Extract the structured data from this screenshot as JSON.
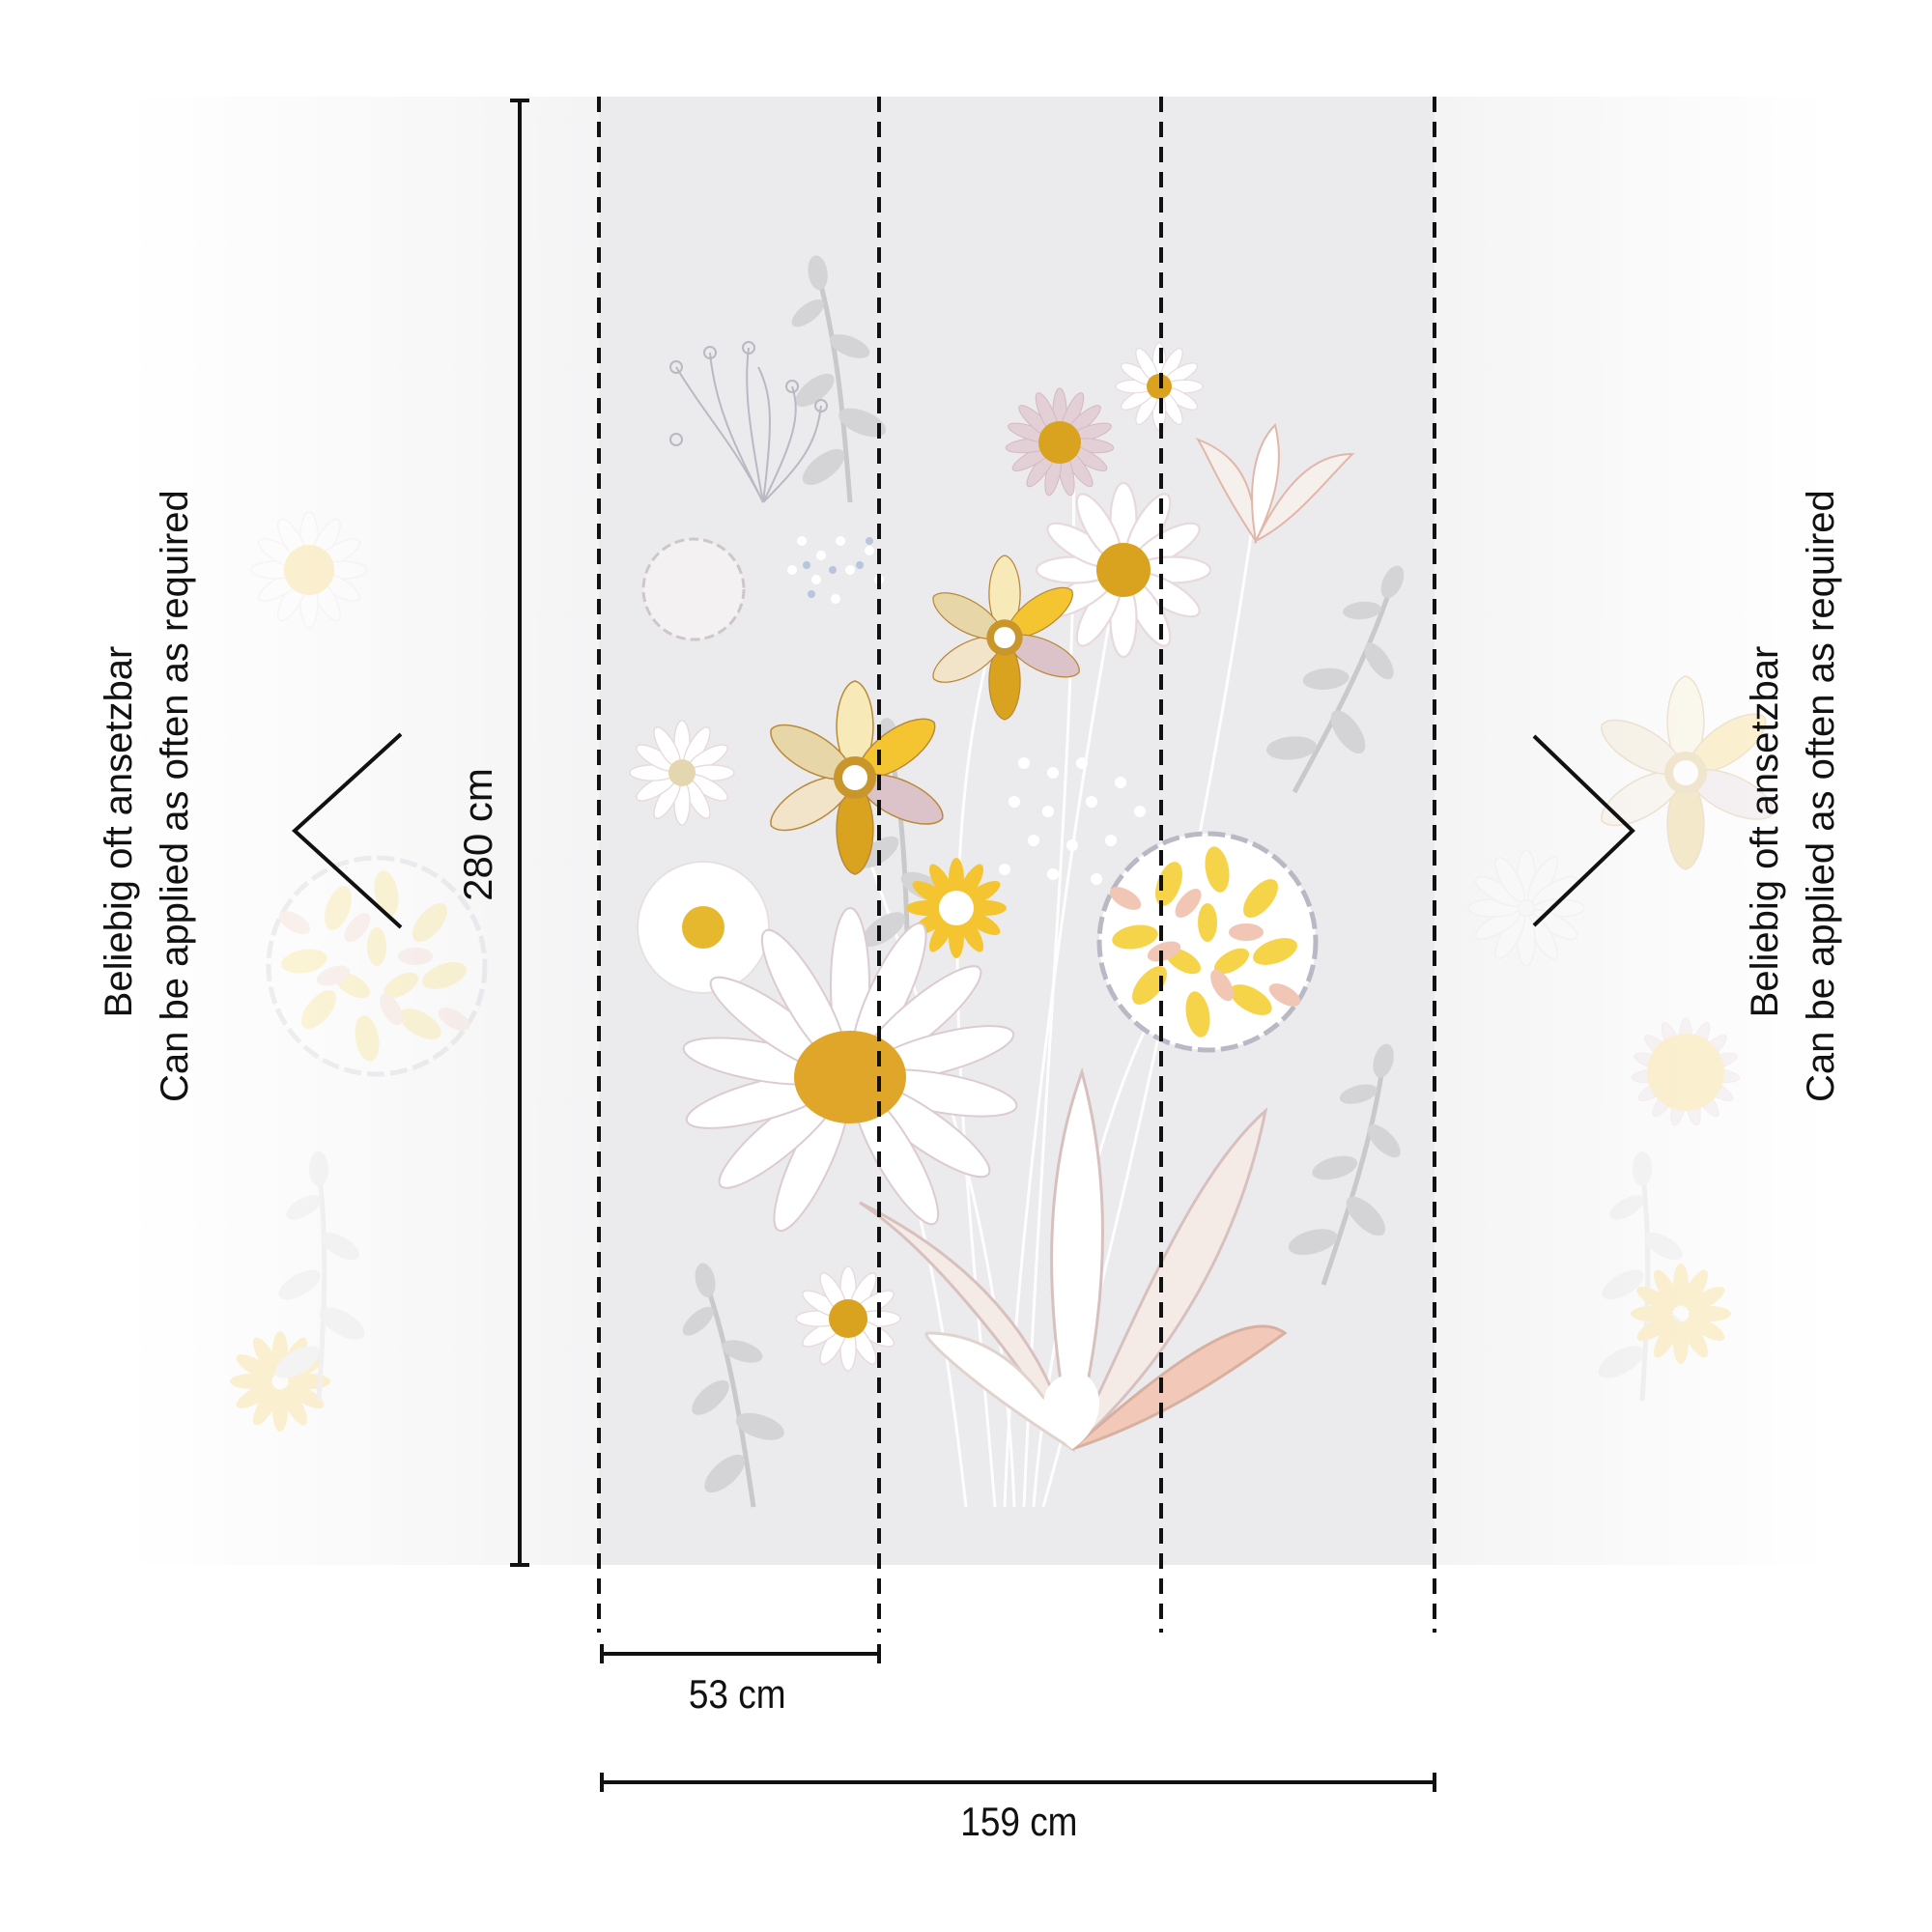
{
  "left_note": {
    "line1": "Beliebig oft ansetzbar",
    "line2": "Can be applied as often as required"
  },
  "right_note": {
    "line1": "Beliebig oft ansetzbar",
    "line2": "Can be applied as often as required"
  },
  "dimensions": {
    "height_label": "280 cm",
    "panel_width_label": "53 cm",
    "total_width_label": "159 cm"
  },
  "colors": {
    "panel_background": "#ebebed",
    "accent_yellow": "#f4c531",
    "accent_ochre": "#d9a21f",
    "petal_white": "#ffffff",
    "petal_pink": "#e8cfd3",
    "leaf_gray": "#c9c9cc",
    "line_black": "#111111"
  },
  "icons": {
    "left_arrow": "chevron-left-icon",
    "right_arrow": "chevron-right-icon"
  }
}
